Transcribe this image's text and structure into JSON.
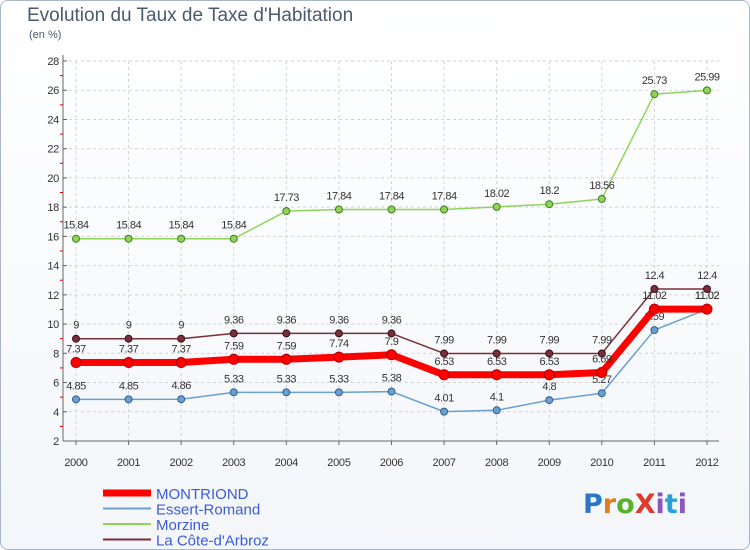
{
  "title": "Evolution du Taux de Taxe d'Habitation",
  "subtitle": "(en %)",
  "logo": {
    "text": "ProXiti"
  },
  "chart_data": {
    "type": "line",
    "x": [
      2000,
      2001,
      2002,
      2003,
      2004,
      2005,
      2006,
      2007,
      2008,
      2009,
      2010,
      2011,
      2012
    ],
    "xticklabels": [
      "2000",
      "2001",
      "2002",
      "2003",
      "2004",
      "2005",
      "2006",
      "2007",
      "2008",
      "2009",
      "2010",
      "2011",
      "2012"
    ],
    "ylim": [
      2,
      28
    ],
    "yticks": [
      2,
      4,
      6,
      8,
      10,
      12,
      14,
      16,
      18,
      20,
      22,
      24,
      26,
      28
    ],
    "grid": true,
    "legend_position": "bottom-left",
    "series": [
      {
        "name": "Morzine",
        "color": "#8fd45a",
        "values": [
          15.84,
          15.84,
          15.84,
          15.84,
          17.73,
          17.84,
          17.84,
          17.84,
          18.02,
          18.2,
          18.56,
          25.73,
          25.99
        ],
        "labels": [
          "15.84",
          "15.84",
          "15.84",
          "15.84",
          "17.73",
          "17.84",
          "17.84",
          "17.84",
          "18.02",
          "18.2",
          "18.56",
          "25.73",
          "25.99"
        ]
      },
      {
        "name": "La Côte-d'Arbroz",
        "color": "#7a2e3a",
        "values": [
          9,
          9,
          9,
          9.36,
          9.36,
          9.36,
          9.36,
          7.99,
          7.99,
          7.99,
          7.99,
          12.4,
          12.4
        ],
        "labels": [
          "9",
          "9",
          "9",
          "9.36",
          "9.36",
          "9.36",
          "9.36",
          "7.99",
          "7.99",
          "7.99",
          "7.99",
          "12.4",
          "12.4"
        ]
      },
      {
        "name": "Essert-Romand",
        "color": "#6a9fd0",
        "values": [
          4.85,
          4.85,
          4.86,
          5.33,
          5.33,
          5.33,
          5.38,
          4.01,
          4.1,
          4.8,
          5.27,
          9.59,
          11.02
        ],
        "labels": [
          "4.85",
          "4.85",
          "4.86",
          "5.33",
          "5.33",
          "5.33",
          "5.38",
          "4.01",
          "4.1",
          "4.8",
          "5.27",
          "9.59",
          "11.02"
        ]
      },
      {
        "name": "MONTRIOND",
        "color": "#ff0000",
        "values": [
          7.37,
          7.37,
          7.37,
          7.59,
          7.59,
          7.74,
          7.9,
          6.53,
          6.53,
          6.53,
          6.69,
          11.02,
          11.02
        ],
        "labels": [
          "7.37",
          "7.37",
          "7.37",
          "7.59",
          "7.59",
          "7.74",
          "7.9",
          "6.53",
          "6.53",
          "6.53",
          "6.69",
          "11.02",
          "11.02"
        ]
      }
    ],
    "legend_order": [
      "MONTRIOND",
      "Essert-Romand",
      "Morzine",
      "La Côte-d'Arbroz"
    ]
  }
}
